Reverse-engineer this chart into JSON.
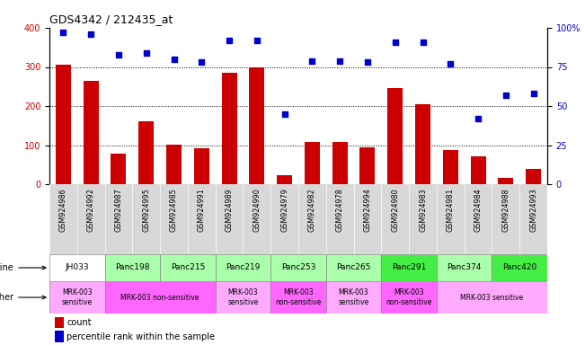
{
  "title": "GDS4342 / 212435_at",
  "gsm_labels": [
    "GSM924986",
    "GSM924992",
    "GSM924987",
    "GSM924995",
    "GSM924985",
    "GSM924991",
    "GSM924989",
    "GSM924990",
    "GSM924979",
    "GSM924982",
    "GSM924978",
    "GSM924994",
    "GSM924980",
    "GSM924983",
    "GSM924981",
    "GSM924984",
    "GSM924988",
    "GSM924993"
  ],
  "bar_values": [
    305,
    265,
    78,
    160,
    102,
    92,
    285,
    300,
    22,
    108,
    108,
    95,
    245,
    205,
    88,
    72,
    17,
    38
  ],
  "scatter_values": [
    97,
    96,
    83,
    84,
    80,
    78,
    92,
    92,
    45,
    79,
    79,
    78,
    91,
    91,
    77,
    42,
    57,
    58
  ],
  "bar_color": "#cc0000",
  "scatter_color": "#0000cc",
  "ylim_left": [
    0,
    400
  ],
  "ylim_right": [
    0,
    100
  ],
  "yticks_left": [
    0,
    100,
    200,
    300,
    400
  ],
  "yticks_right": [
    0,
    25,
    50,
    75,
    100
  ],
  "ytick_labels_right": [
    "0",
    "25",
    "50",
    "75",
    "100%"
  ],
  "cell_line_groups": [
    {
      "label": "JH033",
      "start": 0,
      "end": 2,
      "color": "#ffffff"
    },
    {
      "label": "Panc198",
      "start": 2,
      "end": 4,
      "color": "#aaffaa"
    },
    {
      "label": "Panc215",
      "start": 4,
      "end": 6,
      "color": "#aaffaa"
    },
    {
      "label": "Panc219",
      "start": 6,
      "end": 8,
      "color": "#aaffaa"
    },
    {
      "label": "Panc253",
      "start": 8,
      "end": 10,
      "color": "#aaffaa"
    },
    {
      "label": "Panc265",
      "start": 10,
      "end": 12,
      "color": "#aaffaa"
    },
    {
      "label": "Panc291",
      "start": 12,
      "end": 14,
      "color": "#44ee44"
    },
    {
      "label": "Panc374",
      "start": 14,
      "end": 16,
      "color": "#aaffaa"
    },
    {
      "label": "Panc420",
      "start": 16,
      "end": 18,
      "color": "#44ee44"
    }
  ],
  "other_groups": [
    {
      "label": "MRK-003\nsensitive",
      "start": 0,
      "end": 2,
      "color": "#ffaaff"
    },
    {
      "label": "MRK-003 non-sensitive",
      "start": 2,
      "end": 6,
      "color": "#ff66ff"
    },
    {
      "label": "MRK-003\nsensitive",
      "start": 6,
      "end": 8,
      "color": "#ffaaff"
    },
    {
      "label": "MRK-003\nnon-sensitive",
      "start": 8,
      "end": 10,
      "color": "#ff66ff"
    },
    {
      "label": "MRK-003\nsensitive",
      "start": 10,
      "end": 12,
      "color": "#ffaaff"
    },
    {
      "label": "MRK-003\nnon-sensitive",
      "start": 12,
      "end": 14,
      "color": "#ff66ff"
    },
    {
      "label": "MRK-003 sensitive",
      "start": 14,
      "end": 18,
      "color": "#ffaaff"
    }
  ],
  "n_bars": 18,
  "gsm_bg_color": "#d8d8d8"
}
